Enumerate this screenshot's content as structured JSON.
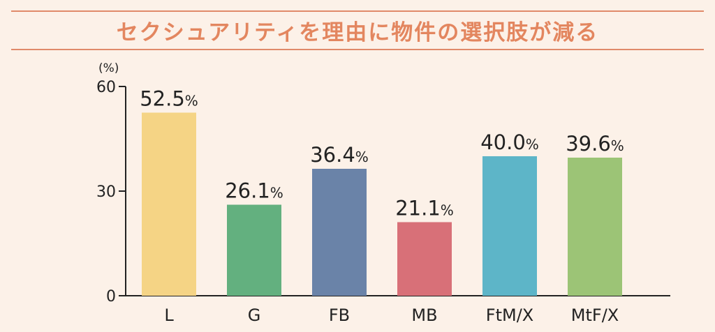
{
  "header": {
    "title": "セクシュアリティを理由に物件の選択肢が減る"
  },
  "chart_data": {
    "type": "bar",
    "title": "セクシュアリティを理由に物件の選択肢が減る",
    "ylabel": "(%)",
    "ylim": [
      0,
      60
    ],
    "yticks": [
      0,
      30,
      60
    ],
    "categories": [
      "L",
      "G",
      "FB",
      "MB",
      "FtM/X",
      "MtF/X"
    ],
    "values": [
      52.5,
      26.1,
      36.4,
      21.1,
      40.0,
      39.6
    ],
    "value_labels": [
      "52.5",
      "26.1",
      "36.4",
      "21.1",
      "40.0",
      "39.6"
    ],
    "value_suffix": "%",
    "colors": [
      "#f5d485",
      "#63b07f",
      "#6a83a8",
      "#d87078",
      "#5db5c8",
      "#9cc476"
    ],
    "grid": false,
    "legend": "none"
  }
}
